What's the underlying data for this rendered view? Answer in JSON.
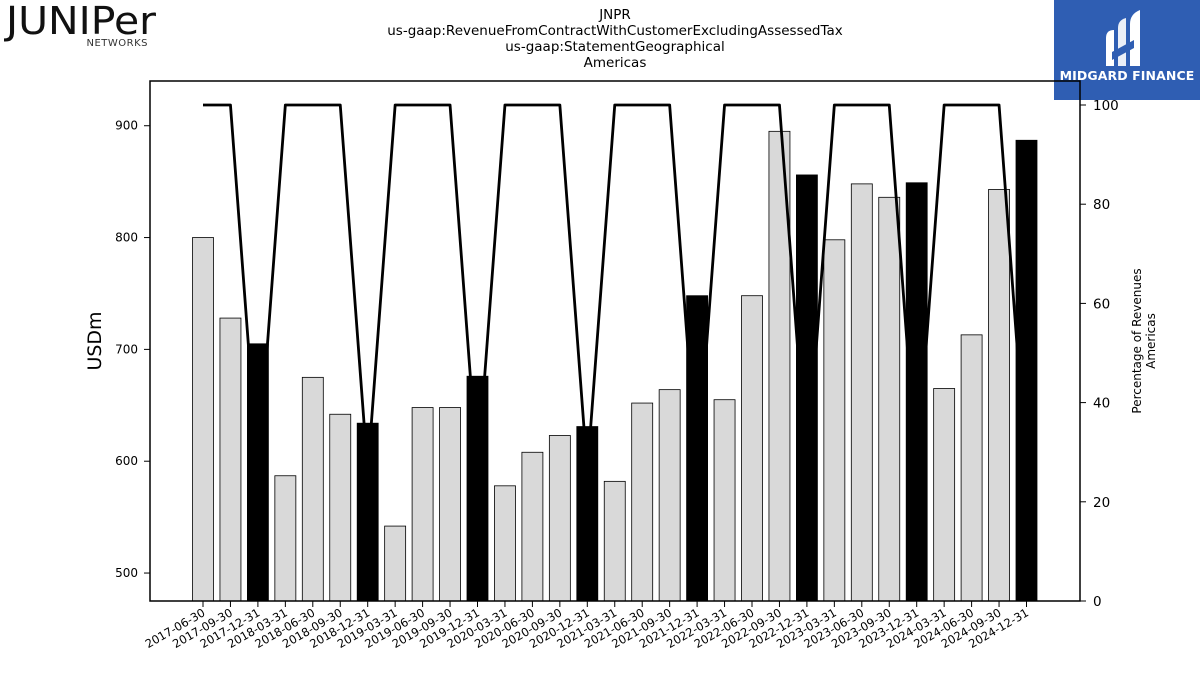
{
  "header": {
    "ticker": "JNPR",
    "concept": "us-gaap:RevenueFromContractWithCustomerExcludingAssessedTax",
    "axis": "us-gaap:StatementGeographical",
    "member": "Americas"
  },
  "logos": {
    "left_brand": "JUNIPer",
    "left_sub": "NETWORKS",
    "right_brand": "MIDGARD FINANCE",
    "right_color": "#2f5eb3"
  },
  "chart_data": {
    "type": "bar",
    "ylabel": "USDm",
    "y2label_line1": "Percentage of Revenues",
    "y2label_line2": "Americas",
    "ylim": [
      475,
      940
    ],
    "y2lim": [
      0,
      100
    ],
    "yticks": [
      500,
      600,
      700,
      800,
      900
    ],
    "y2ticks": [
      0,
      20,
      40,
      60,
      80,
      100
    ],
    "categories": [
      "2017-06-30",
      "2017-09-30",
      "2017-12-31",
      "2018-03-31",
      "2018-06-30",
      "2018-09-30",
      "2018-12-31",
      "2019-03-31",
      "2019-06-30",
      "2019-09-30",
      "2019-12-31",
      "2020-03-31",
      "2020-06-30",
      "2020-09-30",
      "2020-12-31",
      "2021-03-31",
      "2021-06-30",
      "2021-09-30",
      "2021-12-31",
      "2022-03-31",
      "2022-06-30",
      "2022-09-30",
      "2022-12-31",
      "2023-03-31",
      "2023-06-30",
      "2023-09-30",
      "2023-12-31",
      "2024-03-31",
      "2024-06-30",
      "2024-09-30",
      "2024-12-31"
    ],
    "series": [
      {
        "values": [
          800,
          728,
          705,
          587,
          675,
          642,
          634,
          542,
          648,
          648,
          676,
          578,
          608,
          623,
          631,
          582,
          652,
          664,
          748,
          655,
          748,
          895,
          856,
          798,
          848,
          836,
          849,
          665,
          713,
          843,
          887
        ]
      },
      {
        "values": [
          100,
          100,
          26,
          100,
          100,
          100,
          26,
          100,
          100,
          100,
          26,
          100,
          100,
          100,
          26,
          100,
          100,
          100,
          26,
          100,
          100,
          100,
          26,
          100,
          100,
          100,
          26,
          100,
          100,
          100,
          26
        ]
      }
    ],
    "colors": {
      "bar": "#d9d9d9",
      "bar_q4": "#000000",
      "line": "#000000"
    }
  }
}
